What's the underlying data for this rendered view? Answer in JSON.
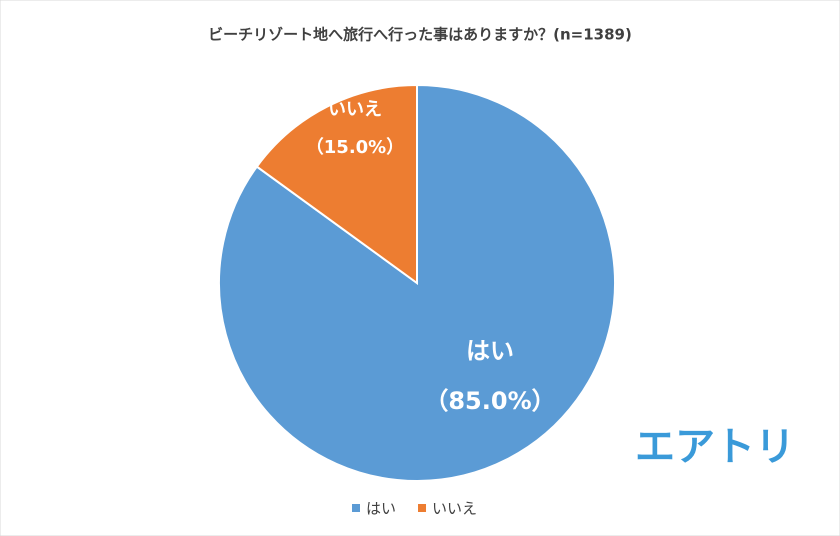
{
  "chart_data": {
    "type": "pie",
    "title": "ビーチリゾート地へ旅行へ行った事はありますか？(n=1389)",
    "categories": [
      "はい",
      "いいえ"
    ],
    "values": [
      85.0,
      15.0
    ],
    "value_labels": [
      "（85.0%）",
      "（15.0%）"
    ],
    "colors": [
      "#5b9bd5",
      "#ed7d31"
    ],
    "legend": "bottom"
  },
  "logo": "エアトリ"
}
